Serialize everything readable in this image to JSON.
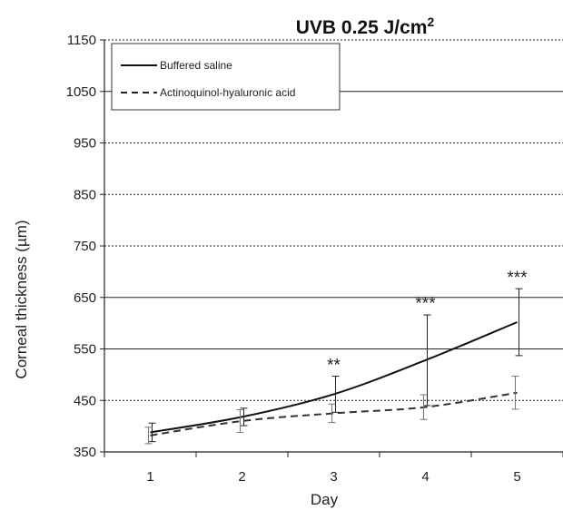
{
  "chart_data": {
    "type": "line",
    "title": "UVB 0.25 J/cm",
    "title_superscript": "2",
    "xlabel": "Day",
    "ylabel": "Corneal thickness (µm)",
    "x": [
      1,
      2,
      3,
      4,
      5
    ],
    "xlim": [
      0.5,
      5.5
    ],
    "ylim": [
      350,
      1150
    ],
    "yticks": [
      350,
      450,
      550,
      650,
      750,
      850,
      950,
      1050,
      1150
    ],
    "grid": "horizontal",
    "legend_position": "top-left",
    "series": [
      {
        "name": "Buffered saline",
        "style": "solid",
        "color": "#111111",
        "values": [
          388,
          418,
          462,
          528,
          602
        ],
        "error": [
          18,
          17,
          35,
          88,
          65
        ]
      },
      {
        "name": "Actinoquinol-hyaluronic acid",
        "style": "dashed",
        "color": "#333333",
        "values": [
          382,
          410,
          425,
          437,
          465
        ],
        "error": [
          16,
          22,
          18,
          24,
          32
        ]
      }
    ],
    "annotations": [
      {
        "x": 3,
        "y": 497,
        "text": "**"
      },
      {
        "x": 4,
        "y": 617,
        "text": "***"
      },
      {
        "x": 5,
        "y": 667,
        "text": "***"
      }
    ]
  }
}
